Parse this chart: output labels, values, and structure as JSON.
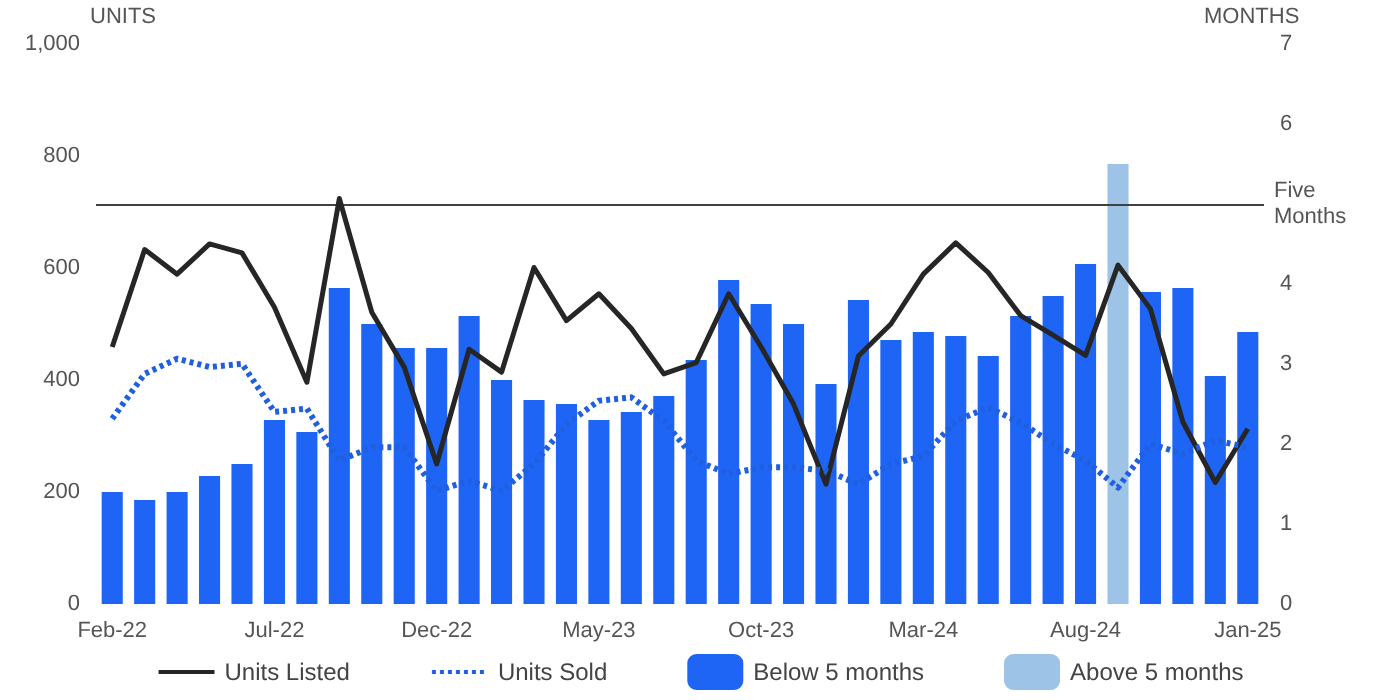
{
  "chart_data": {
    "type": "bar",
    "ylabel": "UNITS",
    "y2label": "MONTHS",
    "categories": [
      "Feb-22",
      null,
      null,
      null,
      null,
      "Jul-22",
      null,
      null,
      null,
      null,
      "Dec-22",
      null,
      null,
      null,
      null,
      "May-23",
      null,
      null,
      null,
      null,
      "Oct-23",
      null,
      null,
      null,
      null,
      "Mar-24",
      null,
      null,
      null,
      null,
      "Aug-24",
      null,
      null,
      null,
      null,
      "Jan-25"
    ],
    "series": [
      {
        "name": "Units Listed",
        "type": "line",
        "color": "#262626",
        "line_style": "solid",
        "values": [
          459,
          633,
          589,
          643,
          627,
          530,
          396,
          724,
          521,
          423,
          250,
          455,
          414,
          601,
          506,
          554,
          492,
          411,
          431,
          554,
          459,
          357,
          214,
          443,
          500,
          589,
          645,
          592,
          515,
          480,
          444,
          605,
          527,
          325,
          217,
          313
        ]
      },
      {
        "name": "Units Sold",
        "type": "line",
        "color": "#1f5fe0",
        "line_style": "dotted",
        "values": [
          331,
          411,
          438,
          423,
          429,
          343,
          349,
          256,
          280,
          280,
          202,
          220,
          202,
          250,
          321,
          363,
          369,
          327,
          256,
          232,
          244,
          244,
          238,
          214,
          250,
          264,
          327,
          351,
          324,
          286,
          256,
          208,
          286,
          268,
          292,
          280
        ]
      },
      {
        "name": "Below 5 months",
        "axis": "y2",
        "color": "#1f65f5",
        "values": [
          1.4,
          1.3,
          1.4,
          1.6,
          1.75,
          2.3,
          2.15,
          3.95,
          3.5,
          3.2,
          3.2,
          3.6,
          2.8,
          2.55,
          2.5,
          2.3,
          2.4,
          2.6,
          3.05,
          4.05,
          3.75,
          3.5,
          2.75,
          3.8,
          3.3,
          3.4,
          3.35,
          3.1,
          3.6,
          3.85,
          4.25,
          null,
          3.9,
          3.95,
          2.85,
          3.4
        ]
      },
      {
        "name": "Above 5 months",
        "axis": "y2",
        "color": "#9dc3e6",
        "values": [
          null,
          null,
          null,
          null,
          null,
          null,
          null,
          null,
          null,
          null,
          null,
          null,
          null,
          null,
          null,
          null,
          null,
          null,
          null,
          null,
          null,
          null,
          null,
          null,
          null,
          null,
          null,
          null,
          null,
          null,
          null,
          5.5,
          null,
          null,
          null,
          null
        ]
      }
    ],
    "ylim": [
      0,
      1000
    ],
    "yticks": [
      0,
      {
        "value": 200,
        "label": "200"
      },
      400,
      600,
      800,
      {
        "value": 1000,
        "label": "1,000"
      }
    ],
    "y2lim": [
      0,
      7
    ],
    "y2ticks": [
      0,
      1,
      2,
      3,
      4,
      6,
      7
    ],
    "ref_lines": [
      {
        "axis": "y2",
        "value": 5,
        "label": "Five Months",
        "color": "#404040"
      }
    ],
    "marker": "none",
    "grid": false,
    "legend": "bottom"
  }
}
